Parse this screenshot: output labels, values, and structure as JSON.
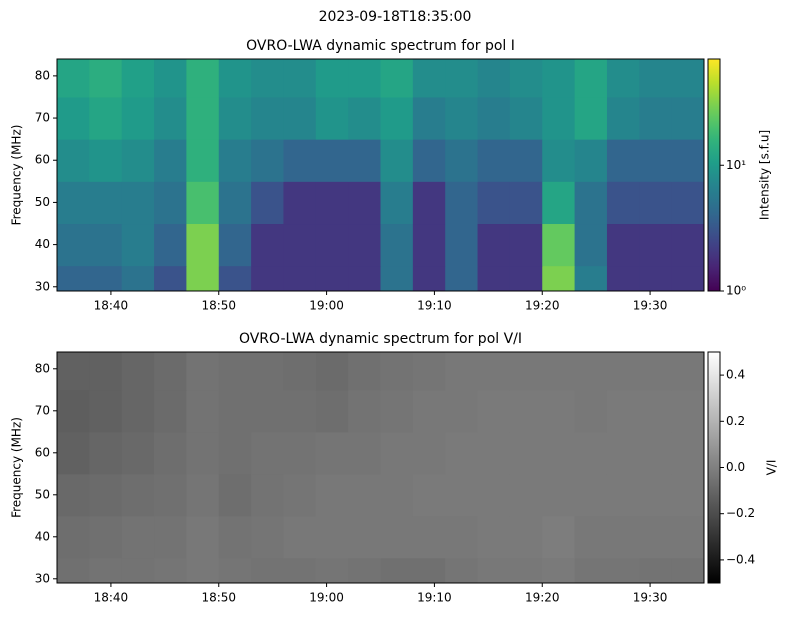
{
  "figure_title": "2023-09-18T18:35:00",
  "chart_data": [
    {
      "type": "heatmap",
      "title": "OVRO-LWA dynamic spectrum for pol I",
      "y_label": "Frequency (MHz)",
      "colorbar_label": "Intensity [s.f.u]",
      "colormap": "viridis",
      "log_color": true,
      "clim": [
        1,
        70
      ],
      "cticks": [
        {
          "value": 1,
          "label": "10⁰"
        },
        {
          "value": 10,
          "label": "10¹"
        }
      ],
      "xlim": [
        "18:35",
        "19:35"
      ],
      "xticks": [
        "18:40",
        "18:50",
        "19:00",
        "19:10",
        "19:20",
        "19:30"
      ],
      "ylim": [
        29,
        84
      ],
      "yticks": [
        30,
        40,
        50,
        60,
        70,
        80
      ],
      "x_edges": [
        "18:35",
        "18:38",
        "18:41",
        "18:44",
        "18:47",
        "18:50",
        "18:53",
        "18:56",
        "18:59",
        "19:02",
        "19:05",
        "19:08",
        "19:11",
        "19:14",
        "19:17",
        "19:20",
        "19:23",
        "19:26",
        "19:29",
        "19:32",
        "19:35"
      ],
      "y_edges": [
        29,
        35,
        45,
        55,
        65,
        75,
        84
      ],
      "z": [
        [
          4,
          4,
          5,
          3,
          30,
          3,
          2,
          2,
          2,
          2,
          5,
          2,
          4,
          2,
          2,
          30,
          6,
          2,
          2,
          2
        ],
        [
          5,
          5,
          6,
          4,
          30,
          4,
          2,
          2,
          2,
          2,
          5,
          2,
          4,
          2,
          2,
          25,
          5,
          2,
          2,
          2
        ],
        [
          6,
          6,
          6,
          5,
          20,
          5,
          3,
          2,
          2,
          2,
          6,
          2,
          4,
          3,
          3,
          12,
          5,
          3,
          3,
          3
        ],
        [
          8,
          9,
          8,
          6,
          15,
          6,
          5,
          4,
          4,
          4,
          8,
          4,
          5,
          4,
          4,
          8,
          7,
          4,
          4,
          4
        ],
        [
          10,
          12,
          10,
          8,
          15,
          8,
          7,
          7,
          9,
          8,
          10,
          6,
          7,
          6,
          7,
          9,
          12,
          7,
          6,
          6
        ],
        [
          12,
          14,
          11,
          9,
          15,
          9,
          8,
          8,
          10,
          10,
          12,
          8,
          8,
          7,
          8,
          9,
          12,
          8,
          7,
          7
        ]
      ]
    },
    {
      "type": "heatmap",
      "title": "OVRO-LWA dynamic spectrum for pol V/I",
      "y_label": "Frequency (MHz)",
      "colorbar_label": "V/I",
      "colormap": "gray",
      "log_color": false,
      "clim": [
        -0.5,
        0.5
      ],
      "cticks": [
        {
          "value": -0.4,
          "label": "−0.4"
        },
        {
          "value": -0.2,
          "label": "−0.2"
        },
        {
          "value": 0,
          "label": "0.0"
        },
        0.2,
        0.4
      ],
      "xlim": [
        "18:35",
        "19:35"
      ],
      "xticks": [
        "18:40",
        "18:50",
        "19:00",
        "19:10",
        "19:20",
        "19:30"
      ],
      "ylim": [
        29,
        84
      ],
      "yticks": [
        30,
        40,
        50,
        60,
        70,
        80
      ],
      "x_edges": [
        "18:35",
        "18:38",
        "18:41",
        "18:44",
        "18:47",
        "18:50",
        "18:53",
        "18:56",
        "18:59",
        "19:02",
        "19:05",
        "19:08",
        "19:11",
        "19:14",
        "19:17",
        "19:20",
        "19:23",
        "19:26",
        "19:29",
        "19:32",
        "19:35"
      ],
      "y_edges": [
        29,
        35,
        45,
        55,
        65,
        75,
        84
      ],
      "z": [
        [
          -0.06,
          -0.05,
          -0.05,
          -0.04,
          -0.03,
          -0.04,
          -0.05,
          -0.05,
          -0.04,
          -0.05,
          -0.06,
          -0.06,
          -0.04,
          -0.03,
          -0.03,
          -0.02,
          -0.04,
          -0.04,
          -0.05,
          -0.05
        ],
        [
          -0.07,
          -0.06,
          -0.05,
          -0.05,
          -0.03,
          -0.05,
          -0.04,
          -0.03,
          -0.03,
          -0.03,
          -0.03,
          -0.03,
          -0.03,
          -0.02,
          -0.02,
          -0.01,
          -0.03,
          -0.03,
          -0.03,
          -0.03
        ],
        [
          -0.09,
          -0.08,
          -0.07,
          -0.06,
          -0.04,
          -0.07,
          -0.05,
          -0.04,
          -0.03,
          -0.03,
          -0.03,
          -0.02,
          -0.02,
          -0.02,
          -0.02,
          -0.02,
          -0.02,
          -0.02,
          -0.02,
          -0.02
        ],
        [
          -0.12,
          -0.1,
          -0.09,
          -0.07,
          -0.05,
          -0.06,
          -0.05,
          -0.05,
          -0.04,
          -0.04,
          -0.03,
          -0.03,
          -0.02,
          -0.02,
          -0.02,
          -0.02,
          -0.02,
          -0.02,
          -0.02,
          -0.02
        ],
        [
          -0.13,
          -0.12,
          -0.1,
          -0.08,
          -0.05,
          -0.06,
          -0.06,
          -0.06,
          -0.07,
          -0.05,
          -0.04,
          -0.03,
          -0.03,
          -0.02,
          -0.02,
          -0.02,
          -0.03,
          -0.02,
          -0.02,
          -0.02
        ],
        [
          -0.12,
          -0.12,
          -0.1,
          -0.08,
          -0.05,
          -0.06,
          -0.06,
          -0.07,
          -0.08,
          -0.06,
          -0.05,
          -0.04,
          -0.03,
          -0.03,
          -0.03,
          -0.03,
          -0.03,
          -0.03,
          -0.03,
          -0.03
        ]
      ]
    }
  ]
}
